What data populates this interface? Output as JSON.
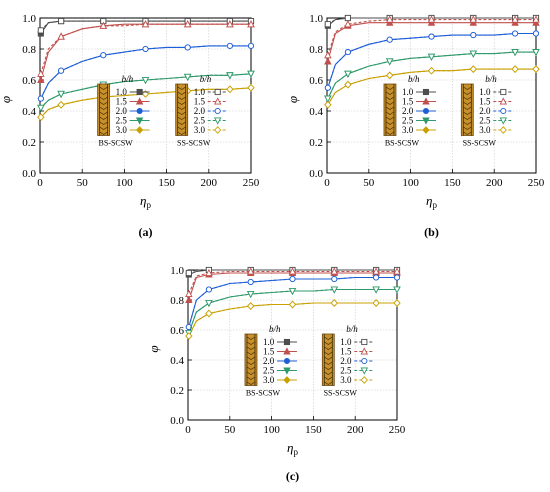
{
  "legend": {
    "ratio_header": "b/h",
    "ratio_labels": [
      "1.0",
      "1.5",
      "2.0",
      "2.5",
      "3.0"
    ],
    "group_bs": "BS-SCSW",
    "group_ss": "SS-SCSW"
  },
  "series_colors": [
    "#4d4d4d",
    "#c0504d",
    "#1f5fd6",
    "#2f9a6a",
    "#c8a000"
  ],
  "series_markers": [
    "square",
    "triangle",
    "circle",
    "inv-triangle",
    "diamond"
  ],
  "icon_name": "shear-wall-icon",
  "chart_data": [
    {
      "type": "line",
      "panel_label": "(a)",
      "xlabel": "η",
      "xlabel_sub": "p",
      "ylabel": "φ",
      "xlim": [
        0,
        250
      ],
      "ylim": [
        0.0,
        1.0
      ],
      "xticks": [
        0,
        50,
        100,
        150,
        200,
        250
      ],
      "yticks": [
        0.0,
        0.2,
        0.4,
        0.6,
        0.8,
        1.0
      ],
      "grid": true,
      "x": [
        1,
        10,
        25,
        50,
        75,
        100,
        125,
        150,
        175,
        200,
        225,
        250
      ],
      "series": [
        {
          "name": "BS-SCSW b/h=1.0",
          "filled": true,
          "values": [
            0.9,
            0.97,
            0.98,
            0.98,
            0.98,
            0.98,
            0.98,
            0.98,
            0.98,
            0.98,
            0.98,
            0.98
          ]
        },
        {
          "name": "BS-SCSW b/h=1.5",
          "filled": true,
          "values": [
            0.6,
            0.78,
            0.88,
            0.93,
            0.95,
            0.96,
            0.96,
            0.96,
            0.96,
            0.96,
            0.96,
            0.96
          ]
        },
        {
          "name": "BS-SCSW b/h=2.0",
          "filled": true,
          "values": [
            0.48,
            0.58,
            0.66,
            0.72,
            0.76,
            0.78,
            0.8,
            0.81,
            0.81,
            0.82,
            0.82,
            0.82
          ]
        },
        {
          "name": "BS-SCSW b/h=2.5",
          "filled": true,
          "values": [
            0.42,
            0.47,
            0.51,
            0.54,
            0.57,
            0.59,
            0.6,
            0.61,
            0.62,
            0.63,
            0.63,
            0.64
          ]
        },
        {
          "name": "BS-SCSW b/h=3.0",
          "filled": true,
          "values": [
            0.36,
            0.41,
            0.44,
            0.47,
            0.49,
            0.5,
            0.51,
            0.52,
            0.53,
            0.54,
            0.54,
            0.55
          ]
        },
        {
          "name": "SS-SCSW b/h=1.0",
          "filled": false,
          "values": [
            0.92,
            0.97,
            0.98,
            0.98,
            0.98,
            0.98,
            0.98,
            0.98,
            0.98,
            0.98,
            0.98,
            0.98
          ]
        },
        {
          "name": "SS-SCSW b/h=1.5",
          "filled": false,
          "values": [
            0.64,
            0.8,
            0.88,
            0.93,
            0.95,
            0.95,
            0.96,
            0.96,
            0.96,
            0.96,
            0.96,
            0.96
          ]
        },
        {
          "name": "SS-SCSW b/h=2.0",
          "filled": false,
          "values": [
            0.48,
            0.58,
            0.66,
            0.72,
            0.76,
            0.78,
            0.8,
            0.81,
            0.81,
            0.82,
            0.82,
            0.82
          ]
        },
        {
          "name": "SS-SCSW b/h=2.5",
          "filled": false,
          "values": [
            0.42,
            0.47,
            0.51,
            0.54,
            0.57,
            0.59,
            0.6,
            0.61,
            0.62,
            0.63,
            0.63,
            0.64
          ]
        },
        {
          "name": "SS-SCSW b/h=3.0",
          "filled": false,
          "values": [
            0.36,
            0.41,
            0.44,
            0.47,
            0.49,
            0.5,
            0.51,
            0.52,
            0.53,
            0.54,
            0.54,
            0.55
          ]
        }
      ]
    },
    {
      "type": "line",
      "panel_label": "(b)",
      "xlabel": "η",
      "xlabel_sub": "p",
      "ylabel": "φ",
      "xlim": [
        0,
        250
      ],
      "ylim": [
        0.0,
        1.0
      ],
      "xticks": [
        0,
        50,
        100,
        150,
        200,
        250
      ],
      "yticks": [
        0.0,
        0.2,
        0.4,
        0.6,
        0.8,
        1.0
      ],
      "grid": true,
      "x": [
        1,
        10,
        25,
        50,
        75,
        100,
        125,
        150,
        175,
        200,
        225,
        250
      ],
      "series": [
        {
          "name": "BS-SCSW b/h=1.0",
          "filled": true,
          "values": [
            0.95,
            0.99,
            1.0,
            1.0,
            1.0,
            1.0,
            1.0,
            1.0,
            1.0,
            1.0,
            1.0,
            1.0
          ]
        },
        {
          "name": "BS-SCSW b/h=1.5",
          "filled": true,
          "values": [
            0.72,
            0.9,
            0.95,
            0.97,
            0.97,
            0.97,
            0.97,
            0.97,
            0.97,
            0.97,
            0.97,
            0.97
          ]
        },
        {
          "name": "BS-SCSW b/h=2.0",
          "filled": true,
          "values": [
            0.55,
            0.7,
            0.78,
            0.83,
            0.86,
            0.87,
            0.88,
            0.89,
            0.89,
            0.89,
            0.9,
            0.9
          ]
        },
        {
          "name": "BS-SCSW b/h=2.5",
          "filled": true,
          "values": [
            0.48,
            0.58,
            0.64,
            0.69,
            0.72,
            0.74,
            0.75,
            0.76,
            0.77,
            0.77,
            0.78,
            0.78
          ]
        },
        {
          "name": "BS-SCSW b/h=3.0",
          "filled": true,
          "values": [
            0.44,
            0.52,
            0.57,
            0.61,
            0.63,
            0.65,
            0.66,
            0.66,
            0.67,
            0.67,
            0.67,
            0.67
          ]
        },
        {
          "name": "SS-SCSW b/h=1.0",
          "filled": false,
          "values": [
            0.96,
            0.99,
            1.0,
            1.0,
            1.0,
            1.0,
            1.0,
            1.0,
            1.0,
            1.0,
            1.0,
            1.0
          ]
        },
        {
          "name": "SS-SCSW b/h=1.5",
          "filled": false,
          "values": [
            0.76,
            0.91,
            0.96,
            0.98,
            0.99,
            0.99,
            0.99,
            0.99,
            0.99,
            0.99,
            0.99,
            0.99
          ]
        },
        {
          "name": "SS-SCSW b/h=2.0",
          "filled": false,
          "values": [
            0.55,
            0.7,
            0.78,
            0.83,
            0.86,
            0.87,
            0.88,
            0.89,
            0.89,
            0.89,
            0.9,
            0.9
          ]
        },
        {
          "name": "SS-SCSW b/h=2.5",
          "filled": false,
          "values": [
            0.48,
            0.58,
            0.64,
            0.69,
            0.72,
            0.74,
            0.75,
            0.76,
            0.77,
            0.77,
            0.78,
            0.78
          ]
        },
        {
          "name": "SS-SCSW b/h=3.0",
          "filled": false,
          "values": [
            0.44,
            0.52,
            0.57,
            0.61,
            0.63,
            0.65,
            0.66,
            0.66,
            0.67,
            0.67,
            0.67,
            0.67
          ]
        }
      ]
    },
    {
      "type": "line",
      "panel_label": "(c)",
      "xlabel": "η",
      "xlabel_sub": "p",
      "ylabel": "φ",
      "xlim": [
        0,
        250
      ],
      "ylim": [
        0.0,
        1.0
      ],
      "xticks": [
        0,
        50,
        100,
        150,
        200,
        250
      ],
      "yticks": [
        0.0,
        0.2,
        0.4,
        0.6,
        0.8,
        1.0
      ],
      "grid": true,
      "x": [
        1,
        10,
        25,
        50,
        75,
        100,
        125,
        150,
        175,
        200,
        225,
        250
      ],
      "series": [
        {
          "name": "BS-SCSW b/h=1.0",
          "filled": true,
          "values": [
            0.97,
            0.99,
            1.0,
            1.0,
            1.0,
            1.0,
            1.0,
            1.0,
            1.0,
            1.0,
            1.0,
            1.0
          ]
        },
        {
          "name": "BS-SCSW b/h=1.5",
          "filled": true,
          "values": [
            0.8,
            0.95,
            0.97,
            0.98,
            0.98,
            0.98,
            0.98,
            0.98,
            0.98,
            0.98,
            0.98,
            0.98
          ]
        },
        {
          "name": "BS-SCSW b/h=2.0",
          "filled": true,
          "values": [
            0.62,
            0.8,
            0.87,
            0.91,
            0.92,
            0.93,
            0.94,
            0.94,
            0.94,
            0.95,
            0.95,
            0.95
          ]
        },
        {
          "name": "BS-SCSW b/h=2.5",
          "filled": true,
          "values": [
            0.58,
            0.72,
            0.78,
            0.82,
            0.84,
            0.85,
            0.86,
            0.86,
            0.87,
            0.87,
            0.87,
            0.87
          ]
        },
        {
          "name": "BS-SCSW b/h=3.0",
          "filled": true,
          "values": [
            0.56,
            0.66,
            0.71,
            0.74,
            0.76,
            0.77,
            0.77,
            0.78,
            0.78,
            0.78,
            0.78,
            0.78
          ]
        },
        {
          "name": "SS-SCSW b/h=1.0",
          "filled": false,
          "values": [
            0.98,
            1.0,
            1.0,
            1.0,
            1.0,
            1.0,
            1.0,
            1.0,
            1.0,
            1.0,
            1.0,
            1.0
          ]
        },
        {
          "name": "SS-SCSW b/h=1.5",
          "filled": false,
          "values": [
            0.84,
            0.96,
            0.98,
            0.99,
            0.99,
            0.99,
            0.99,
            0.99,
            0.99,
            0.99,
            0.99,
            0.99
          ]
        },
        {
          "name": "SS-SCSW b/h=2.0",
          "filled": false,
          "values": [
            0.62,
            0.8,
            0.87,
            0.91,
            0.92,
            0.93,
            0.94,
            0.94,
            0.94,
            0.95,
            0.95,
            0.95
          ]
        },
        {
          "name": "SS-SCSW b/h=2.5",
          "filled": false,
          "values": [
            0.58,
            0.72,
            0.78,
            0.82,
            0.84,
            0.85,
            0.86,
            0.86,
            0.87,
            0.87,
            0.87,
            0.87
          ]
        },
        {
          "name": "SS-SCSW b/h=3.0",
          "filled": false,
          "values": [
            0.56,
            0.66,
            0.71,
            0.74,
            0.76,
            0.77,
            0.77,
            0.78,
            0.78,
            0.78,
            0.78,
            0.78
          ]
        }
      ]
    }
  ]
}
